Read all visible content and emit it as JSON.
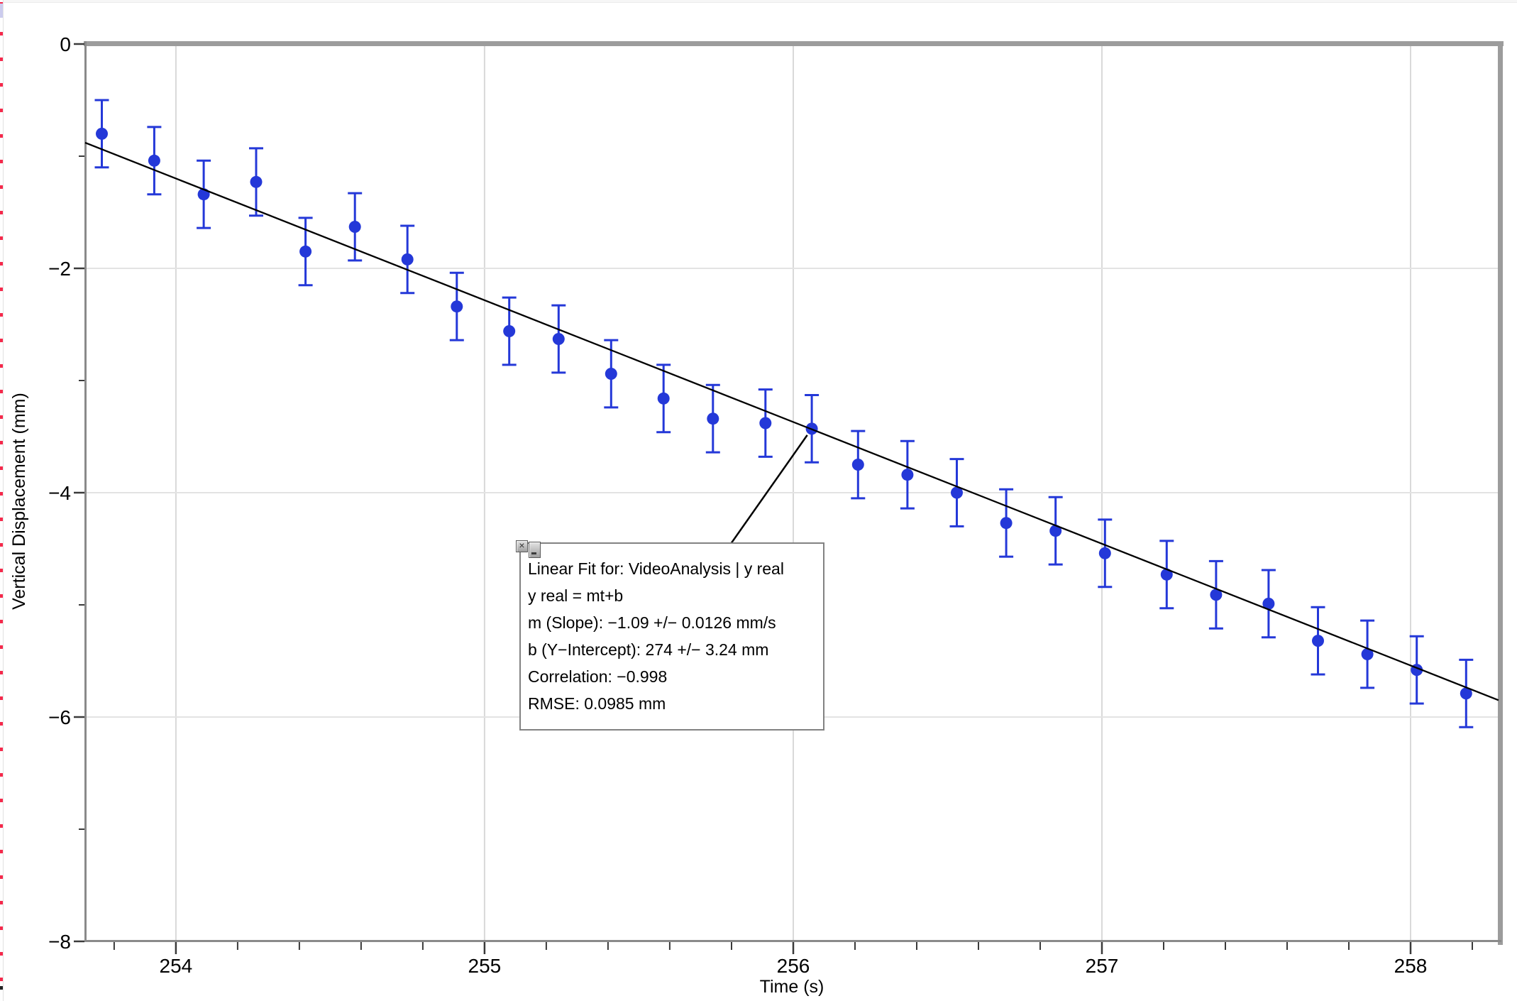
{
  "axes": {
    "x_title": "Time (s)",
    "y_title": "Vertical Displacement (mm)"
  },
  "chart_data": {
    "type": "scatter",
    "title": "",
    "xlabel": "Time (s)",
    "ylabel": "Vertical Displacement (mm)",
    "xlim": [
      253.706,
      258.285
    ],
    "ylim": [
      -8,
      0
    ],
    "grid": "major-only",
    "legend": "none",
    "x_ticks": {
      "major": [
        {
          "v": 254,
          "label": "254"
        },
        {
          "v": 255,
          "label": "255"
        },
        {
          "v": 256,
          "label": "256"
        },
        {
          "v": 257,
          "label": "257"
        },
        {
          "v": 258,
          "label": "258"
        }
      ],
      "minor_step": 0.2
    },
    "y_ticks": {
      "major": [
        {
          "v": 0,
          "label": "0"
        },
        {
          "v": -2,
          "label": "−2"
        },
        {
          "v": -4,
          "label": "−4"
        },
        {
          "v": -6,
          "label": "−6"
        },
        {
          "v": -8,
          "label": "−8"
        }
      ],
      "minor_step": 1
    },
    "series": [
      {
        "name": "VideoAnalysis | y real",
        "marker": "filled-circle",
        "color": "#2438d8",
        "error_bar": 0.3,
        "points": [
          [
            253.76,
            -0.8
          ],
          [
            253.93,
            -1.04
          ],
          [
            254.09,
            -1.34
          ],
          [
            254.26,
            -1.23
          ],
          [
            254.42,
            -1.85
          ],
          [
            254.58,
            -1.63
          ],
          [
            254.75,
            -1.92
          ],
          [
            254.91,
            -2.34
          ],
          [
            255.08,
            -2.56
          ],
          [
            255.24,
            -2.63
          ],
          [
            255.41,
            -2.94
          ],
          [
            255.58,
            -3.16
          ],
          [
            255.74,
            -3.34
          ],
          [
            255.91,
            -3.38
          ],
          [
            256.06,
            -3.43
          ],
          [
            256.21,
            -3.75
          ],
          [
            256.37,
            -3.84
          ],
          [
            256.53,
            -4.0
          ],
          [
            256.69,
            -4.27
          ],
          [
            256.85,
            -4.34
          ],
          [
            257.01,
            -4.54
          ],
          [
            257.21,
            -4.73
          ],
          [
            257.37,
            -4.91
          ],
          [
            257.54,
            -4.99
          ],
          [
            257.7,
            -5.32
          ],
          [
            257.86,
            -5.44
          ],
          [
            258.02,
            -5.58
          ],
          [
            258.18,
            -5.79
          ]
        ]
      }
    ],
    "fit_line": {
      "x1": 253.706,
      "y1": -0.88,
      "x2": 258.285,
      "y2": -5.85,
      "color": "#000000"
    },
    "annotation_target_point": [
      256.06,
      -3.43
    ]
  },
  "annotation": {
    "lines": [
      "Linear Fit for: VideoAnalysis | y real",
      "y real = mt+b",
      "m (Slope): −1.09 +/− 0.0126 mm/s",
      "b (Y−Intercept): 274 +/− 3.24 mm",
      "Correlation: −0.998",
      "RMSE: 0.0985 mm"
    ],
    "close_glyph": "×"
  },
  "colors": {
    "point_blue": "#2438d8",
    "grid_vertical": "#d9d9d9",
    "grid_horizontal": "#e3e3e3",
    "frame_thick": "#9c9c9c",
    "axis_line": "#8a8a8a",
    "tick": "#3a3a3a",
    "ruler_dash_red": "#f5294b"
  }
}
